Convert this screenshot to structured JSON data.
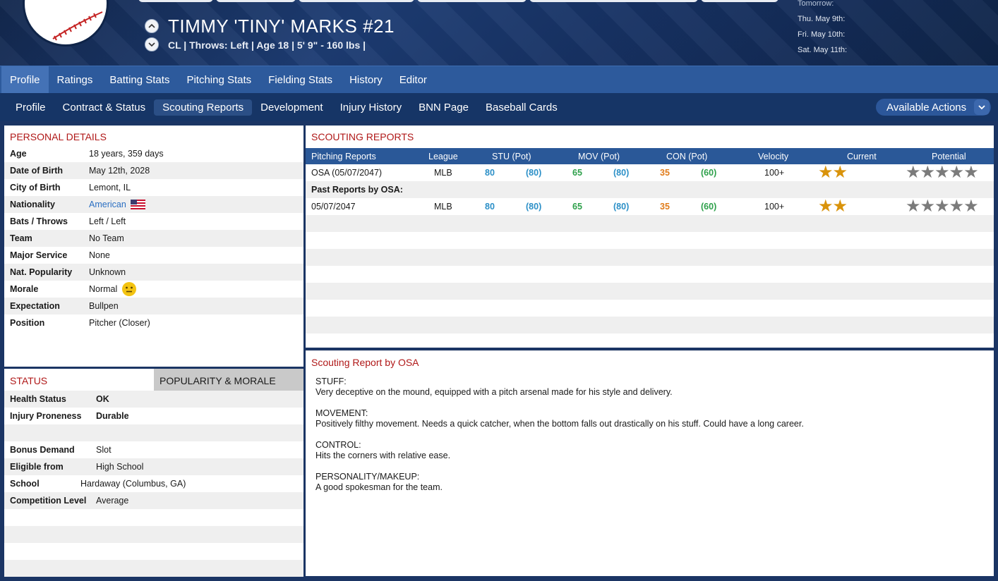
{
  "header": {
    "player_name": "TIMMY 'TINY' MARKS  #21",
    "player_info": "CL | Throws: Left  |  Age 18  |  5' 9\" - 160 lbs  |",
    "schedule": [
      "Tomorrow:",
      "Thu. May 9th:",
      "Fri. May 10th:",
      "Sat. May 11th:"
    ]
  },
  "nav_main": [
    "Profile",
    "Ratings",
    "Batting Stats",
    "Pitching Stats",
    "Fielding Stats",
    "History",
    "Editor"
  ],
  "nav_sub": [
    "Profile",
    "Contract & Status",
    "Scouting Reports",
    "Development",
    "Injury History",
    "BNN Page",
    "Baseball Cards"
  ],
  "actions_label": "Available Actions",
  "personal": {
    "title": "PERSONAL DETAILS",
    "rows": [
      {
        "k": "Age",
        "v": "18 years, 359 days"
      },
      {
        "k": "Date of Birth",
        "v": "May 12th, 2028"
      },
      {
        "k": "City of Birth",
        "v": "Lemont, IL"
      },
      {
        "k": "Nationality",
        "v": "American"
      },
      {
        "k": "Bats / Throws",
        "v": "Left / Left"
      },
      {
        "k": "Team",
        "v": "No Team"
      },
      {
        "k": "Major Service",
        "v": "None"
      },
      {
        "k": "Nat. Popularity",
        "v": "Unknown"
      },
      {
        "k": "Morale",
        "v": "Normal"
      },
      {
        "k": "Expectation",
        "v": "Bullpen"
      },
      {
        "k": "Position",
        "v": "Pitcher (Closer)"
      }
    ]
  },
  "status": {
    "tab_status": "STATUS",
    "tab_popularity": "POPULARITY & MORALE",
    "rows": [
      {
        "k": "Health Status",
        "v": "OK"
      },
      {
        "k": "Injury Proneness",
        "v": "Durable"
      },
      {
        "k": "Bonus Demand",
        "v": "Slot"
      },
      {
        "k": "Eligible from",
        "v": "High School"
      },
      {
        "k": "School",
        "v": "Hardaway (Columbus, GA)"
      },
      {
        "k": "Competition Level",
        "v": "Average"
      }
    ]
  },
  "scouting": {
    "title": "SCOUTING REPORTS",
    "headers": [
      "Pitching Reports",
      "League",
      "STU (Pot)",
      "MOV (Pot)",
      "CON (Pot)",
      "Velocity",
      "Current",
      "Potential"
    ],
    "past_label": "Past Reports by OSA:",
    "rows": [
      {
        "report": "OSA (05/07/2047)",
        "league": "MLB",
        "stu": "80",
        "stu_pot": "(80)",
        "mov": "65",
        "mov_pot": "(80)",
        "con": "35",
        "con_pot": "(60)",
        "velocity": "100+",
        "current_stars": 2,
        "potential_stars": 5
      },
      {
        "report": "05/07/2047",
        "league": "MLB",
        "stu": "80",
        "stu_pot": "(80)",
        "mov": "65",
        "mov_pot": "(80)",
        "con": "35",
        "con_pot": "(60)",
        "velocity": "100+",
        "current_stars": 2,
        "potential_stars": 5
      }
    ]
  },
  "report": {
    "title": "Scouting Report by OSA",
    "sections": [
      {
        "heading": "STUFF:",
        "text": "Very deceptive on the mound, equipped with a pitch arsenal made for his style and delivery."
      },
      {
        "heading": "MOVEMENT:",
        "text": "Positively filthy movement. Needs a quick catcher, when the bottom falls out drastically on his stuff. Could have a long career."
      },
      {
        "heading": "CONTROL:",
        "text": "Hits the corners with relative ease."
      },
      {
        "heading": "PERSONALITY/MAKEUP:",
        "text": "A good spokesman for the team."
      }
    ]
  },
  "colors": {
    "accent": "#2a5898",
    "section_title": "#b01818",
    "stat_blue": "#2b8fc7",
    "stat_green": "#2da04a",
    "stat_orange": "#e07b1a",
    "star_gold": "#d9930b"
  }
}
